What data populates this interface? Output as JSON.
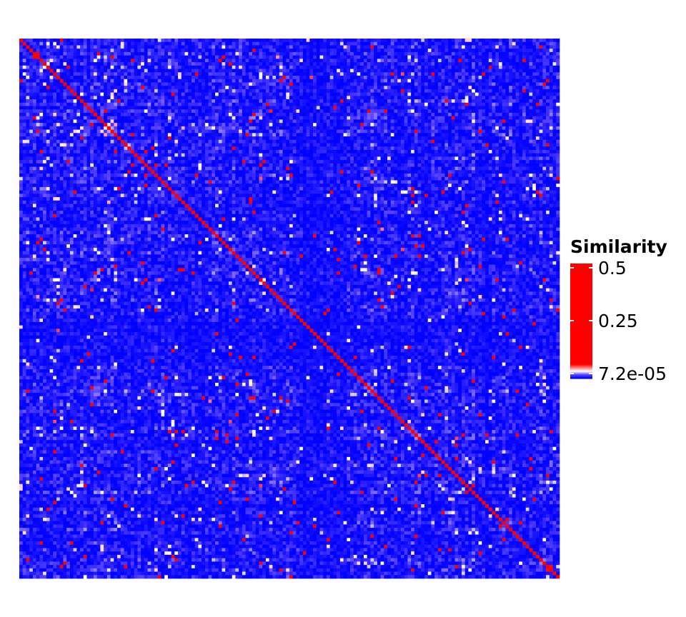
{
  "chart_data": {
    "type": "heatmap",
    "title": "",
    "xlabel": "",
    "ylabel": "",
    "rows": 160,
    "cols": 160,
    "diagonal_value": 0.5,
    "value_range": [
      7.2e-05,
      0.5
    ],
    "color_scale": {
      "low": "#0000ff",
      "mid": "#ffffff",
      "high": "#ff0000"
    },
    "legend": {
      "title": "Similarity",
      "ticks": [
        {
          "value": 0.5,
          "label": "0.5"
        },
        {
          "value": 0.25,
          "label": "0.25"
        },
        {
          "value": 7.2e-05,
          "label": "7.2e-05"
        }
      ],
      "placement": "right"
    }
  }
}
